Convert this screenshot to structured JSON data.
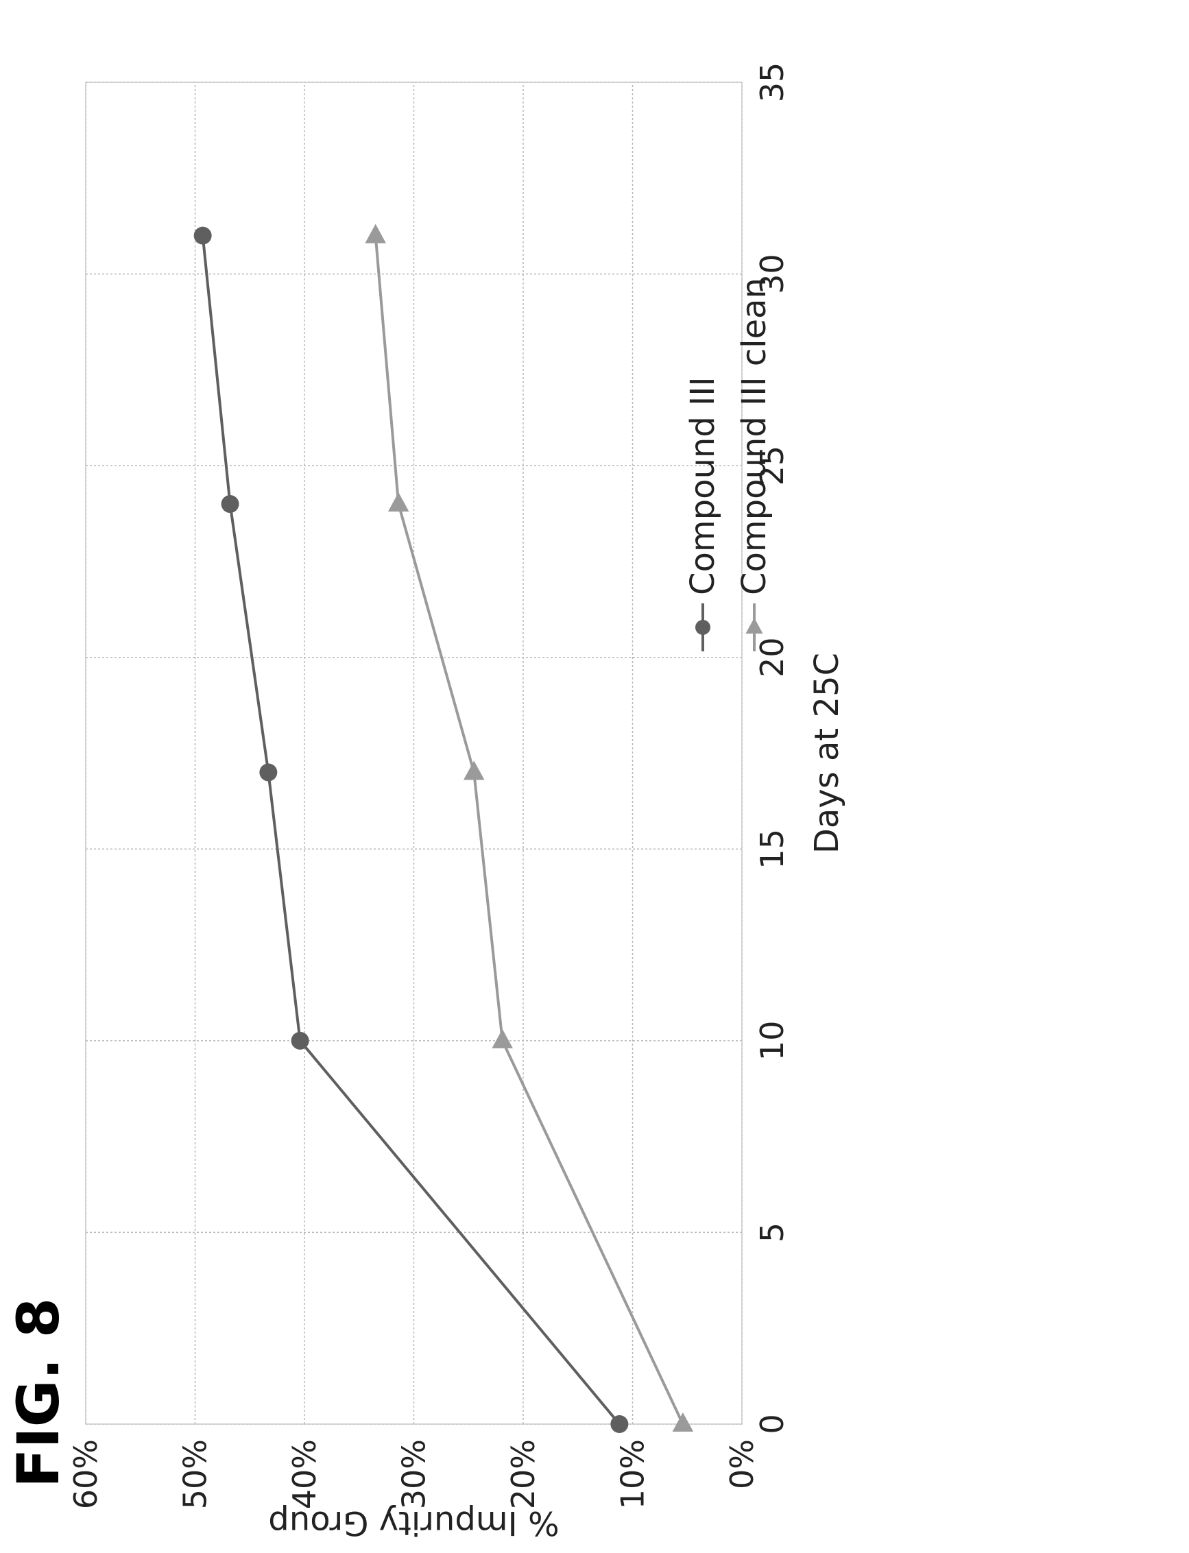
{
  "figure_label": "FIG. 8",
  "chart_data": {
    "type": "line",
    "title": "",
    "xlabel": "Days at 25C",
    "ylabel": "% Impurity Group",
    "xlim": [
      0,
      35
    ],
    "ylim": [
      0,
      0.6
    ],
    "x_ticks": [
      "0",
      "5",
      "10",
      "15",
      "20",
      "25",
      "30",
      "35"
    ],
    "x_tick_values": [
      0,
      5,
      10,
      15,
      20,
      25,
      30,
      35
    ],
    "y_ticks": [
      "0%",
      "10%",
      "20%",
      "30%",
      "40%",
      "50%",
      "60%"
    ],
    "y_tick_values": [
      0,
      0.1,
      0.2,
      0.3,
      0.4,
      0.5,
      0.6
    ],
    "grid": true,
    "legend_position": "right",
    "orientation": "page rotated 90 degrees counterclockwise",
    "series": [
      {
        "name": "Compound III",
        "marker": "circle",
        "color": "#5f5f5f",
        "x": [
          0,
          10,
          17,
          24,
          31
        ],
        "y": [
          0.112,
          0.404,
          0.433,
          0.468,
          0.493
        ]
      },
      {
        "name": "Compound III clean",
        "marker": "triangle",
        "color": "#9a9a9a",
        "x": [
          0,
          10,
          17,
          24,
          31
        ],
        "y": [
          0.054,
          0.219,
          0.245,
          0.314,
          0.335
        ]
      }
    ]
  }
}
